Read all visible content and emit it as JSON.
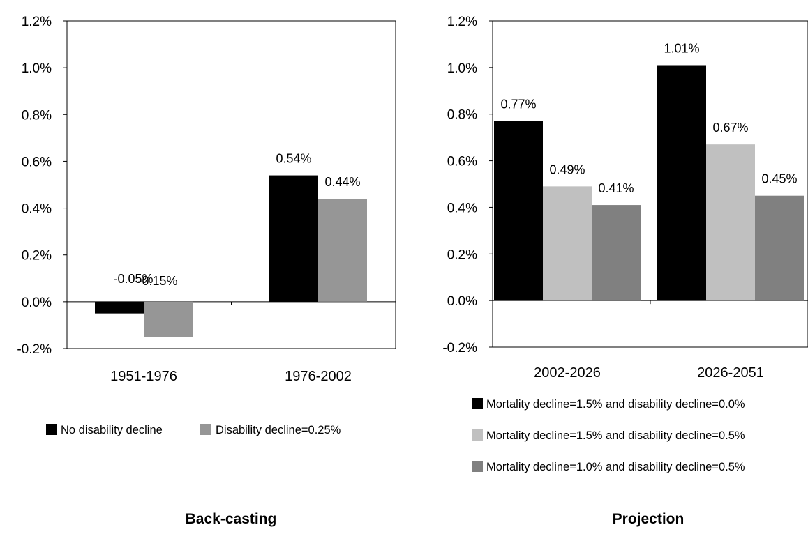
{
  "chart_data": [
    {
      "type": "bar",
      "caption": "Back-casting",
      "categories": [
        "1951-1976",
        "1976-2002"
      ],
      "series": [
        {
          "name": "No disability decline",
          "values": [
            -0.05,
            0.54
          ],
          "labels": [
            "-0.05%",
            "0.54%"
          ],
          "color": "#000000"
        },
        {
          "name": "Disability decline=0.25%",
          "values": [
            -0.15,
            0.44
          ],
          "labels": [
            "-0.15%",
            "0.44%"
          ],
          "color": "#969696"
        }
      ],
      "ylim": [
        -0.2,
        1.2
      ],
      "yticks": [
        "-0.2%",
        "0.0%",
        "0.2%",
        "0.4%",
        "0.6%",
        "0.8%",
        "1.0%",
        "1.2%"
      ],
      "legend_position": "bottom"
    },
    {
      "type": "bar",
      "caption": "Projection",
      "categories": [
        "2002-2026",
        "2026-2051"
      ],
      "series": [
        {
          "name": "Mortality decline=1.5%  and disability decline=0.0%",
          "values": [
            0.77,
            1.01
          ],
          "labels": [
            "0.77%",
            "1.01%"
          ],
          "color": "#000000"
        },
        {
          "name": "Mortality decline=1.5%  and disability decline=0.5%",
          "values": [
            0.49,
            0.67
          ],
          "labels": [
            "0.49%",
            "0.67%"
          ],
          "color": "#c0c0c0"
        },
        {
          "name": "Mortality decline=1.0%  and disability decline=0.5%",
          "values": [
            0.41,
            0.45
          ],
          "labels": [
            "0.41%",
            "0.45%"
          ],
          "color": "#808080"
        }
      ],
      "ylim": [
        -0.2,
        1.2
      ],
      "yticks": [
        "-0.2%",
        "0.0%",
        "0.2%",
        "0.4%",
        "0.6%",
        "0.8%",
        "1.0%",
        "1.2%"
      ],
      "legend_position": "bottom"
    }
  ]
}
